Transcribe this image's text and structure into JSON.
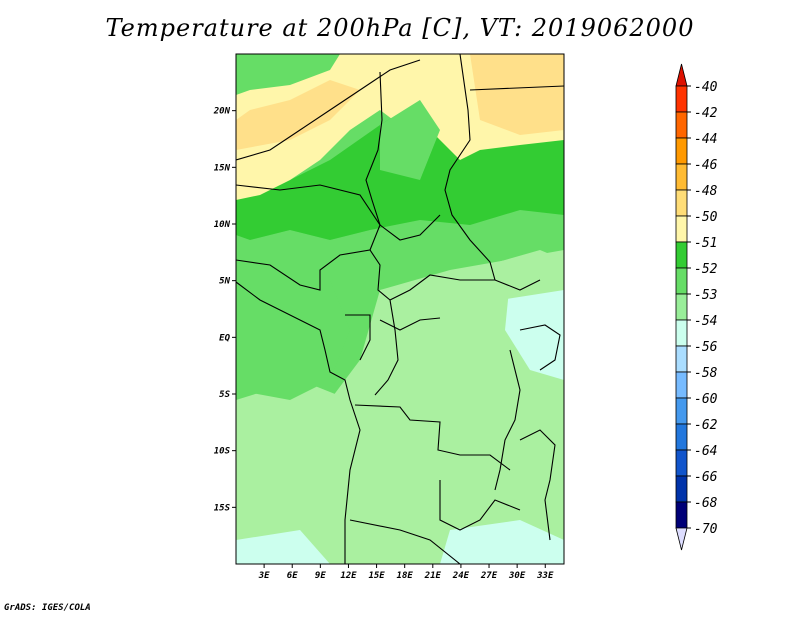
{
  "title": "Temperature at 200hPa [C], VT: 2019062000",
  "credit": "GrADS: IGES/COLA",
  "map": {
    "variable": "Temperature",
    "level": "200hPa",
    "units": "C",
    "valid_time": "2019062000",
    "lon_range": [
      0,
      35
    ],
    "lat_range": [
      -20,
      25
    ],
    "lon_ticks": [
      "3E",
      "6E",
      "9E",
      "12E",
      "15E",
      "18E",
      "21E",
      "24E",
      "27E",
      "30E",
      "33E"
    ],
    "lat_ticks": [
      "20N",
      "15N",
      "10N",
      "5N",
      "EQ",
      "5S",
      "10S",
      "15S"
    ]
  },
  "colorbar": {
    "labels": [
      "-40",
      "-42",
      "-44",
      "-46",
      "-48",
      "-50",
      "-51",
      "-52",
      "-53",
      "-54",
      "-56",
      "-58",
      "-60",
      "-62",
      "-64",
      "-66",
      "-68",
      "-70"
    ],
    "colors": [
      "#a00000",
      "#ff3300",
      "#ff6600",
      "#ff9900",
      "#ffbb33",
      "#ffdd77",
      "#fff6aa",
      "#33cc33",
      "#66dd66",
      "#99ee99",
      "#ccffee",
      "#aaddff",
      "#77bbff",
      "#4499ee",
      "#2277dd",
      "#1155cc",
      "#0033aa",
      "#000077"
    ],
    "top_arrow_color": "#dd1100",
    "bottom_arrow_color": "#ddddff"
  },
  "legend_colors": {
    "yellow_region": "#ffe08a",
    "light_yellow": "#fff6aa",
    "dark_green": "#33cc33",
    "mid_green": "#66dd66",
    "light_green": "#aaf0a0",
    "pale_cyan": "#ccffee"
  }
}
